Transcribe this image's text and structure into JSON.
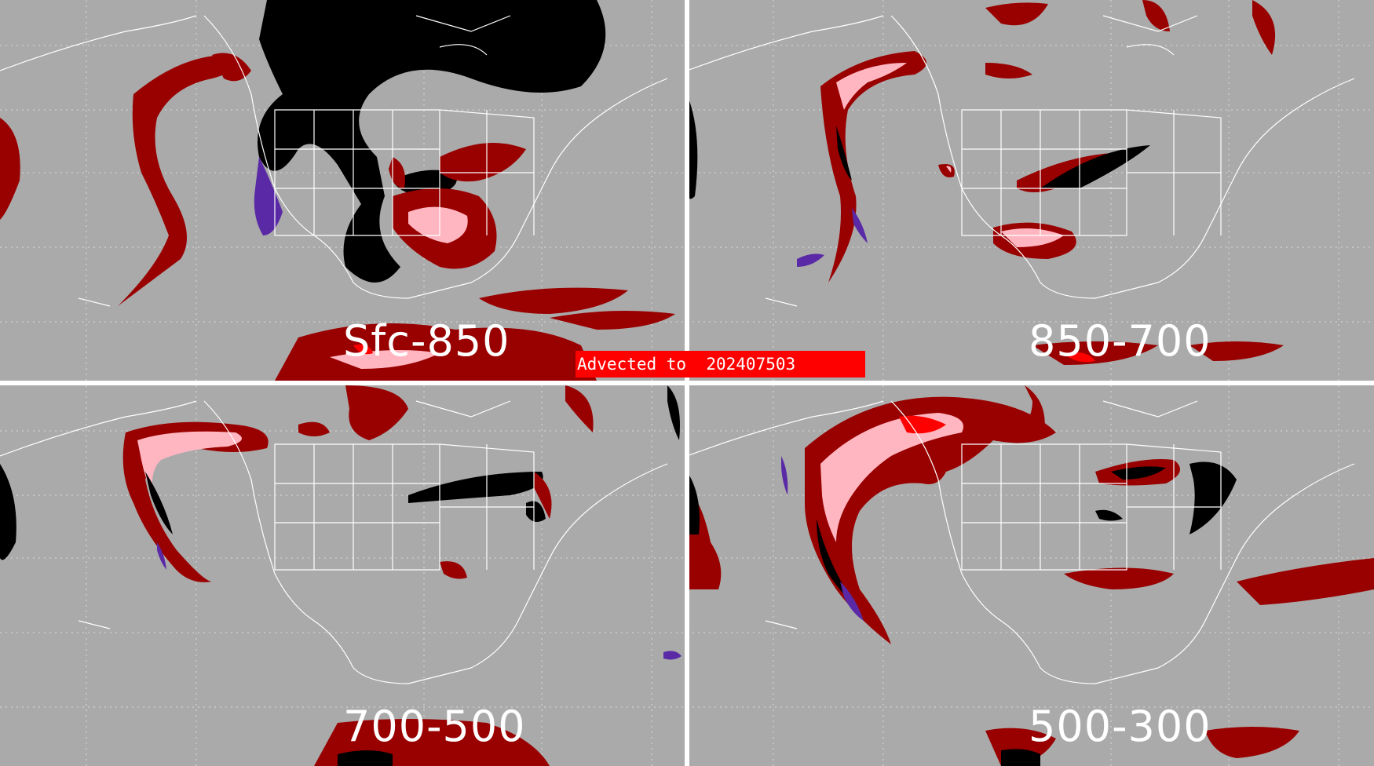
{
  "figure": {
    "banner": "Advected to  202407503",
    "colors": {
      "background": "#aaaaaa",
      "coastline": "#ffffff",
      "gridline": "#d9d9d9",
      "dark_red": "#990000",
      "pink": "#ffb6c1",
      "red": "#ff0000",
      "black": "#000000",
      "purple": "#5a2aa6",
      "divider": "#ffffff",
      "banner_bg": "#ff0000",
      "banner_text": "#ffffff"
    },
    "panels": [
      {
        "label": "Sfc-850"
      },
      {
        "label": "850-700"
      },
      {
        "label": "700-500"
      },
      {
        "label": "500-300"
      }
    ]
  }
}
